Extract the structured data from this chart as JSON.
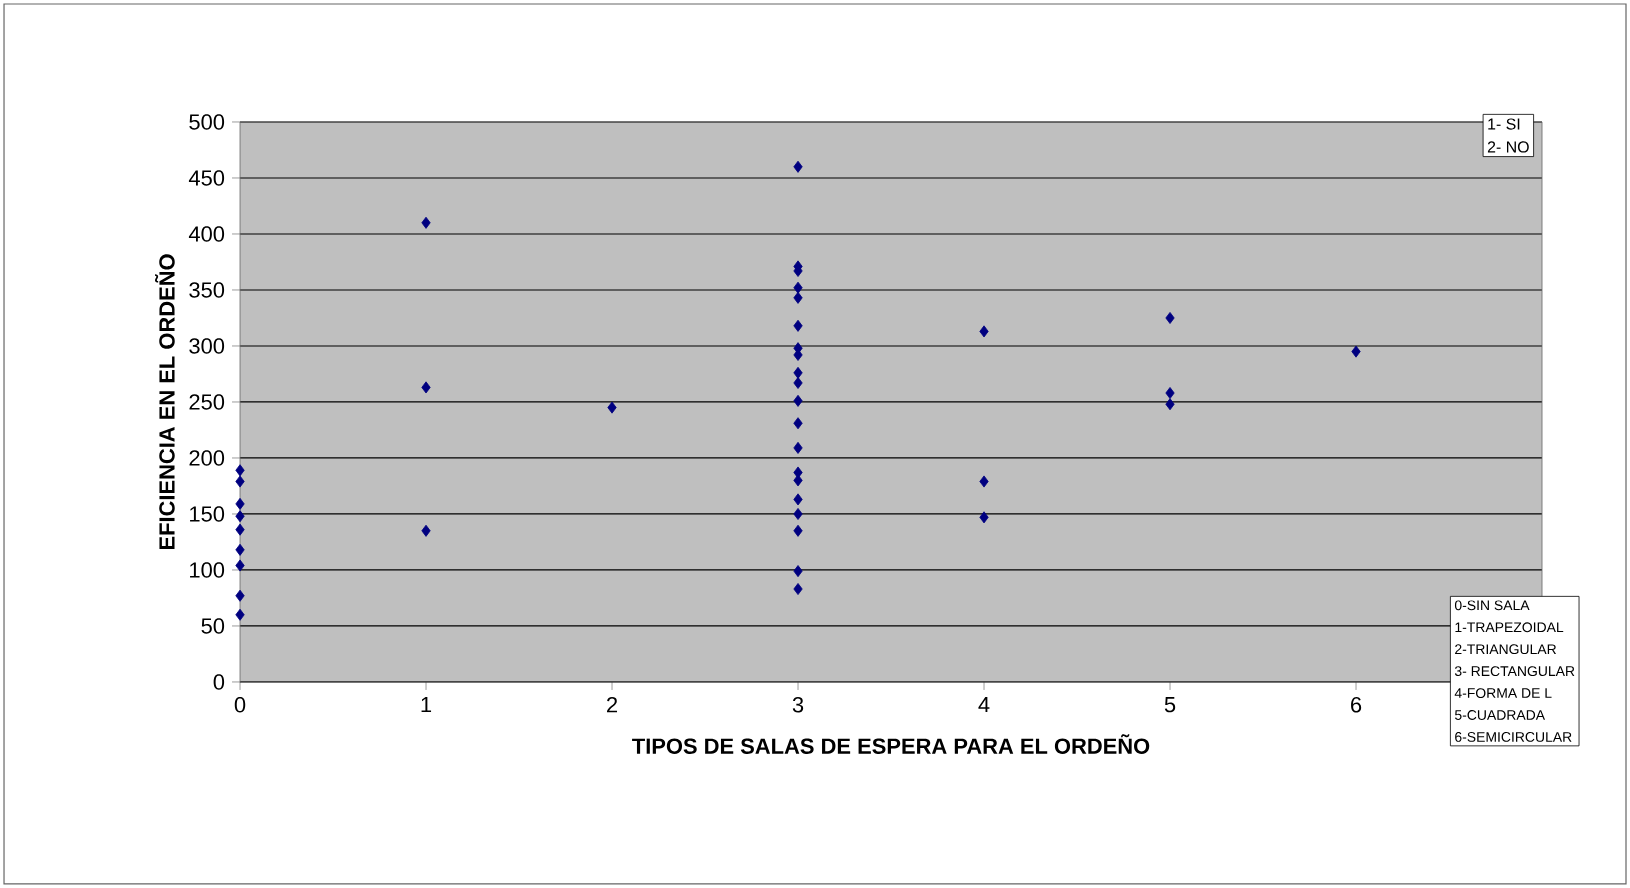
{
  "chart_data": {
    "type": "scatter",
    "xlabel": "TIPOS DE SALAS DE ESPERA PARA EL ORDEÑO",
    "ylabel": "EFICIENCIA EN EL ORDEÑO",
    "series": [
      {
        "color": "#000080",
        "x": [
          0,
          0,
          0,
          0,
          0,
          0,
          0,
          0,
          0,
          1,
          1,
          1,
          2,
          3,
          3,
          3,
          3,
          3,
          3,
          3,
          3,
          3,
          3,
          3,
          3,
          3,
          3,
          3,
          3,
          3,
          3,
          3,
          3,
          4,
          4,
          4,
          5,
          5,
          5,
          6
        ],
        "values": [
          189,
          179,
          159,
          148,
          136,
          118,
          104,
          77,
          60,
          410,
          263,
          135,
          245,
          460,
          371,
          367,
          352,
          343,
          318,
          298,
          292,
          276,
          267,
          251,
          231,
          209,
          187,
          180,
          163,
          150,
          135,
          99,
          83,
          313,
          179,
          147,
          325,
          258,
          248,
          295
        ]
      }
    ],
    "xlim": [
      0,
      7
    ],
    "xticks": [
      0,
      1,
      2,
      3,
      4,
      5,
      6
    ],
    "ylim": [
      0,
      500
    ],
    "yticks": [
      0,
      50,
      100,
      150,
      200,
      250,
      300,
      350,
      400,
      450,
      500
    ],
    "grid": "y",
    "marker": "diamond",
    "annotations": [
      "1- SI",
      "2- NO",
      "0-SIN SALA",
      "1-TRAPEZOIDAL",
      "2-TRIANGULAR",
      "3- RECTANGULAR",
      "4-FORMA DE L",
      "5-CUADRADA",
      "6-SEMICIRCULAR"
    ]
  }
}
